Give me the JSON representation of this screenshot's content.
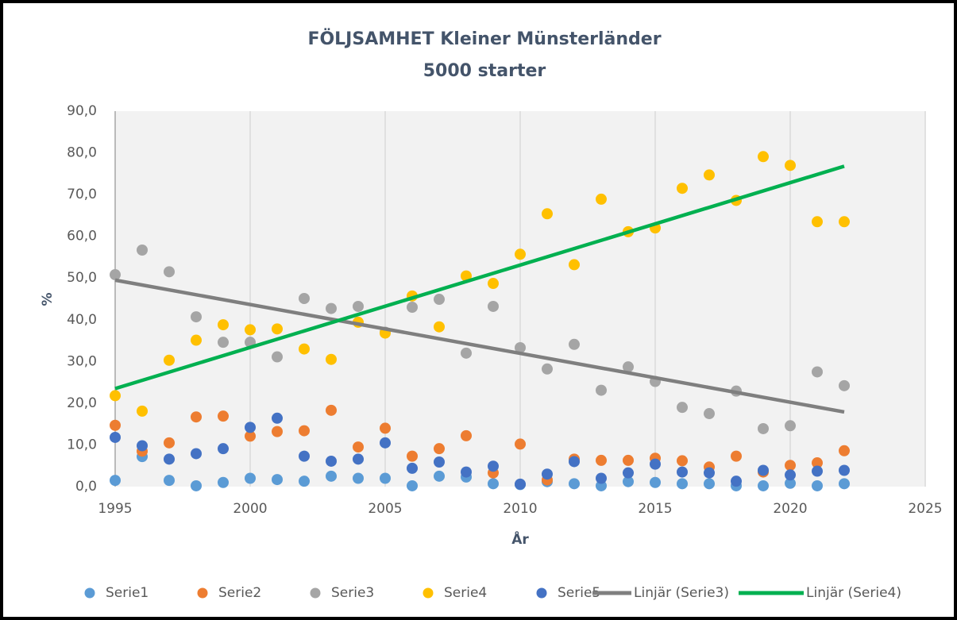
{
  "chart_data": {
    "type": "scatter",
    "title": "FÖLJSAMHET Kleiner Münsterländer",
    "subtitle": "5000 starter",
    "xlabel": "År",
    "ylabel": "%",
    "x": [
      1995,
      1996,
      1997,
      1998,
      1999,
      2000,
      2001,
      2002,
      2003,
      2004,
      2005,
      2006,
      2007,
      2008,
      2009,
      2010,
      2011,
      2012,
      2013,
      2014,
      2015,
      2016,
      2017,
      2018,
      2019,
      2020,
      2021,
      2022
    ],
    "series": [
      {
        "name": "Serie1",
        "color": "#5b9bd5",
        "values": [
          1.5,
          7.2,
          1.5,
          0.2,
          1.0,
          2.0,
          1.7,
          1.3,
          2.5,
          2.0,
          2.0,
          0.2,
          2.5,
          2.3,
          0.7,
          0.5,
          1.2,
          0.7,
          0.2,
          1.2,
          1.0,
          0.7,
          0.7,
          0.2,
          0.2,
          0.8,
          0.2,
          0.7
        ]
      },
      {
        "name": "Serie2",
        "color": "#ed7d31",
        "values": [
          14.7,
          8.5,
          10.5,
          16.7,
          16.9,
          12.1,
          13.2,
          13.4,
          18.3,
          9.5,
          14.0,
          7.3,
          9.1,
          12.2,
          3.3,
          10.2,
          1.6,
          6.6,
          6.3,
          6.3,
          6.8,
          6.2,
          4.7,
          7.3,
          3.5,
          5.1,
          5.7,
          8.6
        ]
      },
      {
        "name": "Serie3",
        "color": "#a5a5a5",
        "values": [
          50.8,
          56.7,
          51.5,
          40.7,
          34.6,
          34.6,
          31.1,
          45.1,
          42.7,
          43.2,
          37.0,
          43.0,
          44.9,
          32.0,
          43.2,
          33.3,
          28.2,
          34.1,
          23.1,
          28.7,
          25.2,
          19.0,
          17.5,
          22.9,
          13.9,
          14.6,
          27.5,
          24.2
        ]
      },
      {
        "name": "Serie4",
        "color": "#ffc000",
        "values": [
          21.8,
          18.1,
          30.3,
          35.1,
          38.8,
          37.6,
          37.8,
          33.0,
          30.5,
          39.4,
          36.8,
          45.7,
          38.3,
          50.5,
          48.7,
          55.7,
          65.4,
          53.2,
          68.9,
          61.1,
          62.0,
          71.5,
          74.7,
          68.6,
          79.1,
          77.0,
          63.5,
          63.5
        ]
      },
      {
        "name": "Serie5",
        "color": "#4472c4",
        "values": [
          11.8,
          9.8,
          6.6,
          7.9,
          9.1,
          14.2,
          16.4,
          7.3,
          6.1,
          6.6,
          10.5,
          4.4,
          5.9,
          3.5,
          4.9,
          0.6,
          3.0,
          6.0,
          2.0,
          3.3,
          5.4,
          3.5,
          3.3,
          1.3,
          3.9,
          2.8,
          3.7,
          3.9
        ]
      }
    ],
    "trendlines": [
      {
        "name": "Linjär (Serie3)",
        "color": "#7f7f7f",
        "x": [
          1995,
          2022
        ],
        "values": [
          49.5,
          17.9
        ]
      },
      {
        "name": "Linjär (Serie4)",
        "color": "#00b050",
        "x": [
          1995,
          2022
        ],
        "values": [
          23.5,
          76.8
        ]
      }
    ],
    "xlim": [
      1995,
      2025
    ],
    "xticks": [
      1995,
      2000,
      2005,
      2010,
      2015,
      2020,
      2025
    ],
    "ylim": [
      0,
      90
    ],
    "yticks": [
      {
        "value": 0,
        "label": "0,0"
      },
      {
        "value": 10,
        "label": "10,0"
      },
      {
        "value": 20,
        "label": "20,0"
      },
      {
        "value": 30,
        "label": "30,0"
      },
      {
        "value": 40,
        "label": "40,0"
      },
      {
        "value": 50,
        "label": "50,0"
      },
      {
        "value": 60,
        "label": "60,0"
      },
      {
        "value": 70,
        "label": "70,0"
      },
      {
        "value": 80,
        "label": "80,0"
      },
      {
        "value": 90,
        "label": "90,0"
      }
    ],
    "grid": "x",
    "legend": "bottom"
  }
}
